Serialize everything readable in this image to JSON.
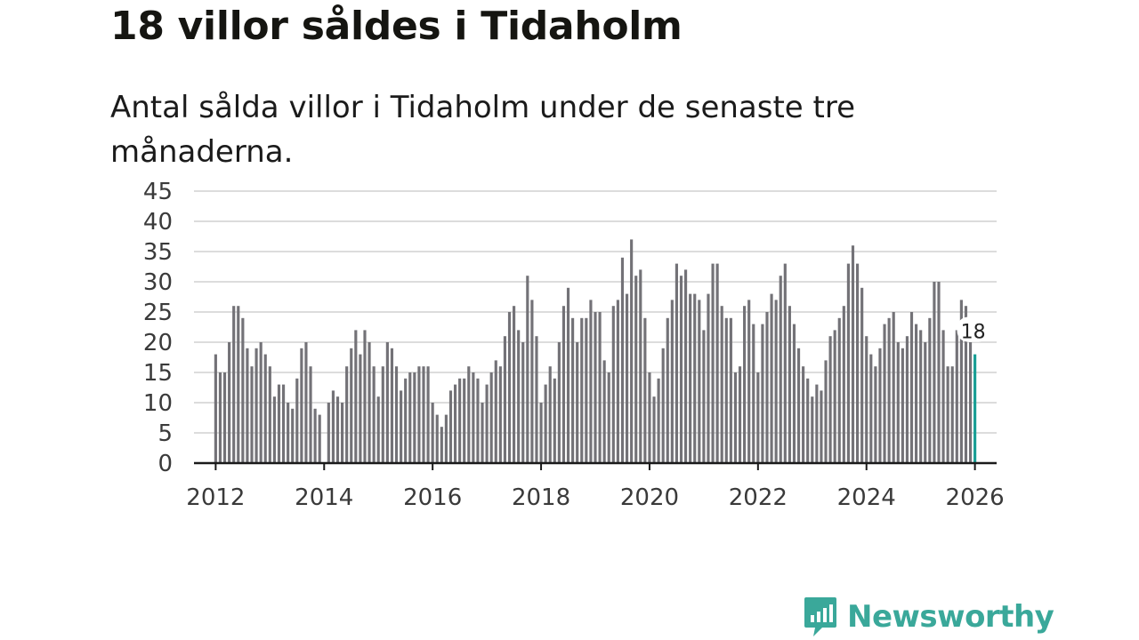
{
  "title": "18 villor såldes i Tidaholm",
  "subtitle": "Antal sålda villor i Tidaholm under de senaste tre månaderna.",
  "brand": {
    "name": "Newsworthy",
    "color": "#3aa89a",
    "icon": "newsworthy-logo-icon"
  },
  "colors": {
    "bar": "#737277",
    "highlight": "#179e94",
    "grid": "#dcdcdc",
    "axis": "#1a1a1a"
  },
  "chart_data": {
    "type": "bar",
    "title": "18 villor såldes i Tidaholm",
    "xlabel": "",
    "ylabel": "",
    "x_start": "2012-01",
    "xlim": [
      2011.6,
      2026.4
    ],
    "ylim": [
      0,
      45
    ],
    "yticks": [
      0,
      5,
      10,
      15,
      20,
      25,
      30,
      35,
      40,
      45
    ],
    "xticks": [
      2012,
      2014,
      2016,
      2018,
      2020,
      2022,
      2024,
      2026
    ],
    "grid": true,
    "values": [
      18,
      15,
      15,
      20,
      26,
      26,
      24,
      19,
      16,
      19,
      20,
      18,
      16,
      11,
      13,
      13,
      10,
      9,
      14,
      19,
      20,
      16,
      9,
      8,
      0,
      10,
      12,
      11,
      10,
      16,
      19,
      22,
      18,
      22,
      20,
      16,
      11,
      16,
      20,
      19,
      16,
      12,
      14,
      15,
      15,
      16,
      16,
      16,
      10,
      8,
      6,
      8,
      12,
      13,
      14,
      14,
      16,
      15,
      14,
      10,
      13,
      15,
      17,
      16,
      21,
      25,
      26,
      22,
      20,
      31,
      27,
      21,
      10,
      13,
      16,
      14,
      20,
      26,
      29,
      24,
      20,
      24,
      24,
      27,
      25,
      25,
      17,
      15,
      26,
      27,
      34,
      28,
      37,
      31,
      32,
      24,
      15,
      11,
      14,
      19,
      24,
      27,
      33,
      31,
      32,
      28,
      28,
      27,
      22,
      28,
      33,
      33,
      26,
      24,
      24,
      15,
      16,
      26,
      27,
      23,
      15,
      23,
      25,
      28,
      27,
      31,
      33,
      26,
      23,
      19,
      16,
      14,
      11,
      13,
      12,
      17,
      21,
      22,
      24,
      26,
      33,
      36,
      33,
      29,
      21,
      18,
      16,
      19,
      23,
      24,
      25,
      20,
      19,
      21,
      25,
      23,
      22,
      20,
      24,
      30,
      30,
      22,
      16,
      16,
      22,
      27,
      26,
      20,
      18
    ],
    "highlight": {
      "label": "18",
      "value": 18,
      "color": "#179e94"
    }
  }
}
